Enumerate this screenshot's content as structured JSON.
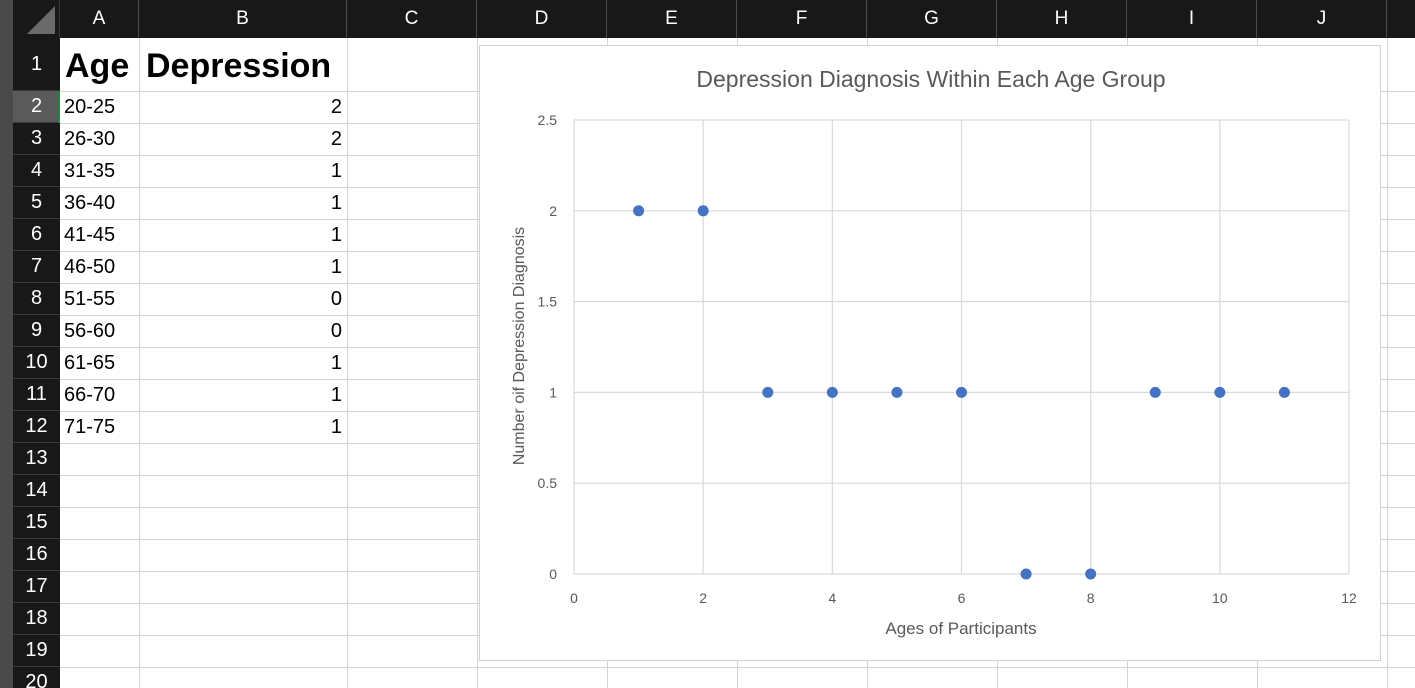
{
  "spreadsheet": {
    "columns": [
      "A",
      "B",
      "C",
      "D",
      "E",
      "F",
      "G",
      "H",
      "I",
      "J"
    ],
    "rows": [
      "1",
      "2",
      "3",
      "4",
      "5",
      "6",
      "7",
      "8",
      "9",
      "10",
      "11",
      "12",
      "13",
      "14",
      "15",
      "16",
      "17",
      "18",
      "19",
      "20"
    ],
    "headers": {
      "age": "Age",
      "depression": "Depression"
    },
    "data": [
      {
        "age": "20-25",
        "depression": "2"
      },
      {
        "age": "26-30",
        "depression": "2"
      },
      {
        "age": "31-35",
        "depression": "1"
      },
      {
        "age": "36-40",
        "depression": "1"
      },
      {
        "age": "41-45",
        "depression": "1"
      },
      {
        "age": "46-50",
        "depression": "1"
      },
      {
        "age": "51-55",
        "depression": "0"
      },
      {
        "age": "56-60",
        "depression": "0"
      },
      {
        "age": "61-65",
        "depression": "1"
      },
      {
        "age": "66-70",
        "depression": "1"
      },
      {
        "age": "71-75",
        "depression": "1"
      }
    ],
    "active_row": "2"
  },
  "chart_data": {
    "type": "scatter",
    "title": "Depression Diagnosis Within Each Age Group",
    "xlabel": "Ages of Participants",
    "ylabel": "Number oif Depression Diagnosis",
    "xlim": [
      0,
      12
    ],
    "ylim": [
      0,
      2.5
    ],
    "x_ticks": [
      "0",
      "2",
      "4",
      "6",
      "8",
      "10",
      "12"
    ],
    "y_ticks": [
      "0",
      "0.5",
      "1",
      "1.5",
      "2",
      "2.5"
    ],
    "grid": true,
    "legend": "none",
    "series": [
      {
        "x": [
          1,
          2,
          3,
          4,
          5,
          6,
          7,
          8,
          9,
          10,
          11
        ],
        "y": [
          2,
          2,
          1,
          1,
          1,
          1,
          0,
          0,
          1,
          1,
          1
        ],
        "color": "#4472c4"
      }
    ]
  }
}
